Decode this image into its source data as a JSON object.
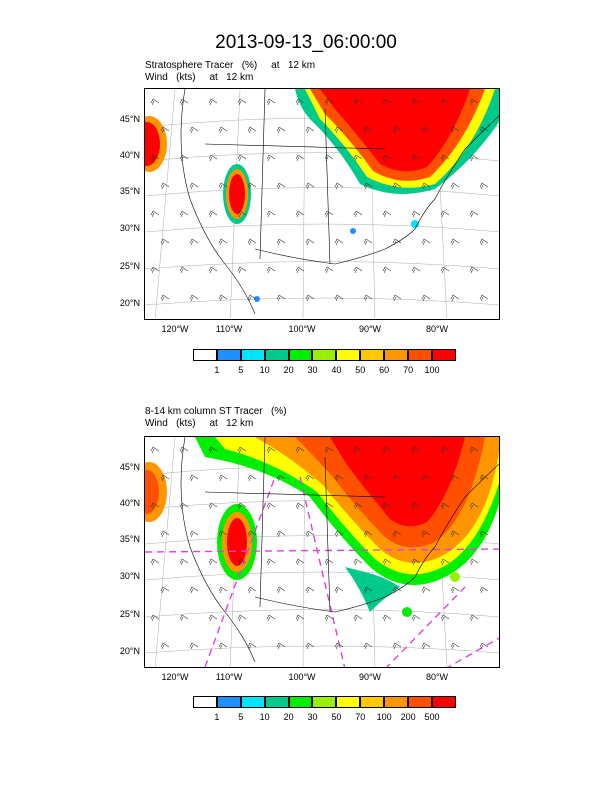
{
  "title": "2013-09-13_06:00:00",
  "panels": [
    {
      "subtitle_line1": "Stratosphere Tracer   (%)     at   12 km",
      "subtitle_line2": "Wind   (kts)     at   12 km",
      "lat_labels": [
        "45°N",
        "40°N",
        "35°N",
        "30°N",
        "25°N",
        "20°N"
      ],
      "lon_labels": [
        "120°W",
        "110°W",
        "100°W",
        "90°W",
        "80°W"
      ],
      "colorbar_labels": [
        "1",
        "5",
        "10",
        "20",
        "30",
        "40",
        "50",
        "60",
        "70",
        "100"
      ]
    },
    {
      "subtitle_line1": "8-14 km column ST Tracer   (%)",
      "subtitle_line2": "Wind   (kts)     at   12 km",
      "lat_labels": [
        "45°N",
        "40°N",
        "35°N",
        "30°N",
        "25°N",
        "20°N"
      ],
      "lon_labels": [
        "120°W",
        "110°W",
        "100°W",
        "90°W",
        "80°W"
      ],
      "colorbar_labels": [
        "1",
        "5",
        "10",
        "20",
        "30",
        "50",
        "70",
        "100",
        "200",
        "500"
      ]
    }
  ],
  "colorbar_colors": [
    "#ffffff",
    "#1e90ff",
    "#00e5ff",
    "#00c98c",
    "#00ee00",
    "#98f000",
    "#ffff00",
    "#ffc800",
    "#ff9600",
    "#ff5000",
    "#ff0000"
  ],
  "accent_colors": {
    "overlay_dashes": "#e040e0",
    "background": "#ffffff"
  }
}
